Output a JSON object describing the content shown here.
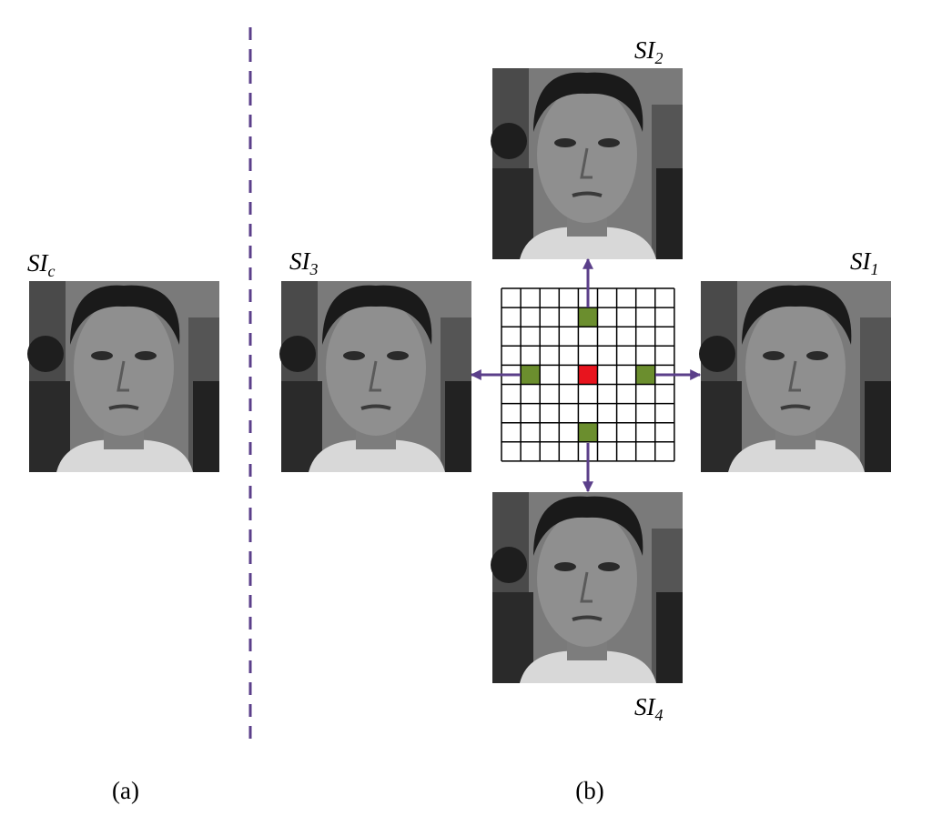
{
  "labels": [
    {
      "base": "SI",
      "sub": "c"
    },
    {
      "base": "SI",
      "sub": "3"
    },
    {
      "base": "SI",
      "sub": "1"
    },
    {
      "base": "SI",
      "sub": "2"
    },
    {
      "base": "SI",
      "sub": "4"
    }
  ],
  "captions": [
    "(a)",
    "(b)"
  ]
}
